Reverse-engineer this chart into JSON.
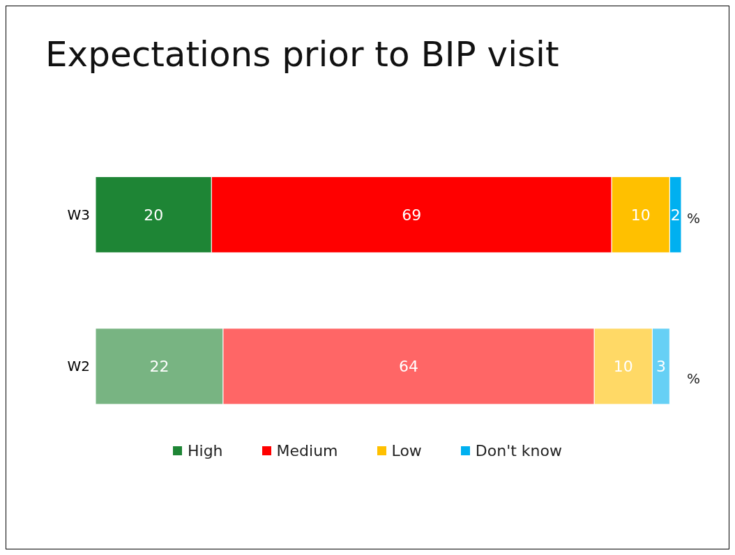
{
  "chart_data": {
    "type": "bar",
    "orientation": "horizontal",
    "stacked": true,
    "title": "Expectations prior to BIP visit",
    "categories": [
      "W3",
      "W2"
    ],
    "series": [
      {
        "name": "High",
        "color": "#1e8535",
        "colors": [
          "#1e8535",
          "#78b482"
        ],
        "values": [
          20,
          22
        ]
      },
      {
        "name": "Medium",
        "color": "#ff0000",
        "colors": [
          "#ff0000",
          "#ff6666"
        ],
        "values": [
          69,
          64
        ]
      },
      {
        "name": "Low",
        "color": "#ffc000",
        "colors": [
          "#ffc000",
          "#ffd966"
        ],
        "values": [
          10,
          10
        ]
      },
      {
        "name": "Don't know",
        "color": "#00b0f0",
        "colors": [
          "#00b0f0",
          "#66d0f5"
        ],
        "values": [
          2,
          3
        ]
      }
    ],
    "xlim": [
      0,
      101
    ],
    "data_labels": true,
    "legend": "bottom",
    "grid": false,
    "tick_labels": "y",
    "annotations": [
      "%",
      "%"
    ]
  }
}
